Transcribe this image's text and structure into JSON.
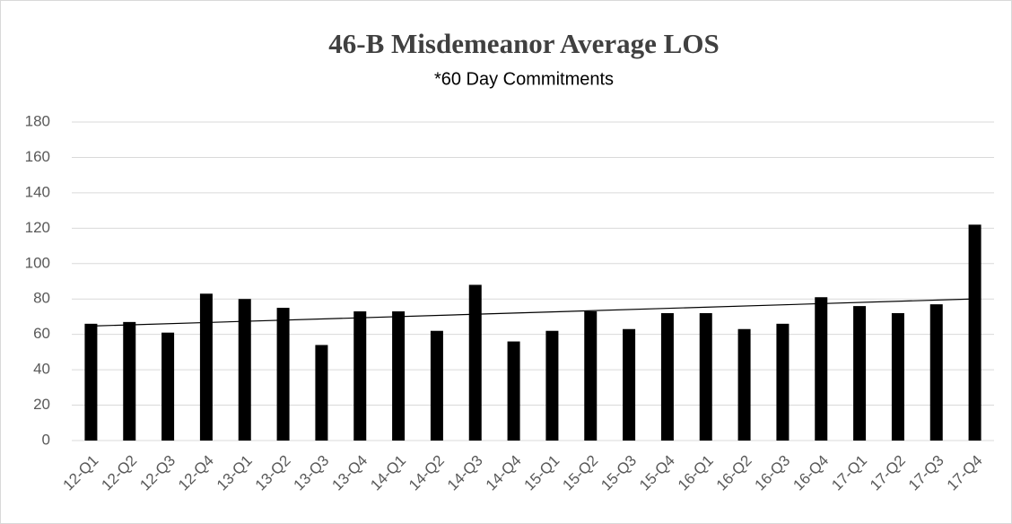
{
  "chart_data": {
    "type": "bar",
    "title": "46-B  Misdemeanor Average LOS",
    "subtitle": "*60 Day Commitments",
    "categories": [
      "12-Q1",
      "12-Q2",
      "12-Q3",
      "12-Q4",
      "13-Q1",
      "13-Q2",
      "13-Q3",
      "13-Q4",
      "14-Q1",
      "14-Q2",
      "14-Q3",
      "14-Q4",
      "15-Q1",
      "15-Q2",
      "15-Q3",
      "15-Q4",
      "16-Q1",
      "16-Q2",
      "16-Q3",
      "16-Q4",
      "17-Q1",
      "17-Q2",
      "17-Q3",
      "17-Q4"
    ],
    "values": [
      66,
      67,
      61,
      83,
      80,
      75,
      54,
      73,
      73,
      62,
      88,
      56,
      62,
      73,
      63,
      72,
      72,
      63,
      66,
      81,
      76,
      72,
      77,
      122
    ],
    "color": "#000000",
    "ylim": [
      0,
      180
    ],
    "yticks": [
      0,
      20,
      40,
      60,
      80,
      100,
      120,
      140,
      160,
      180
    ],
    "grid": true,
    "trendline": "linear"
  }
}
